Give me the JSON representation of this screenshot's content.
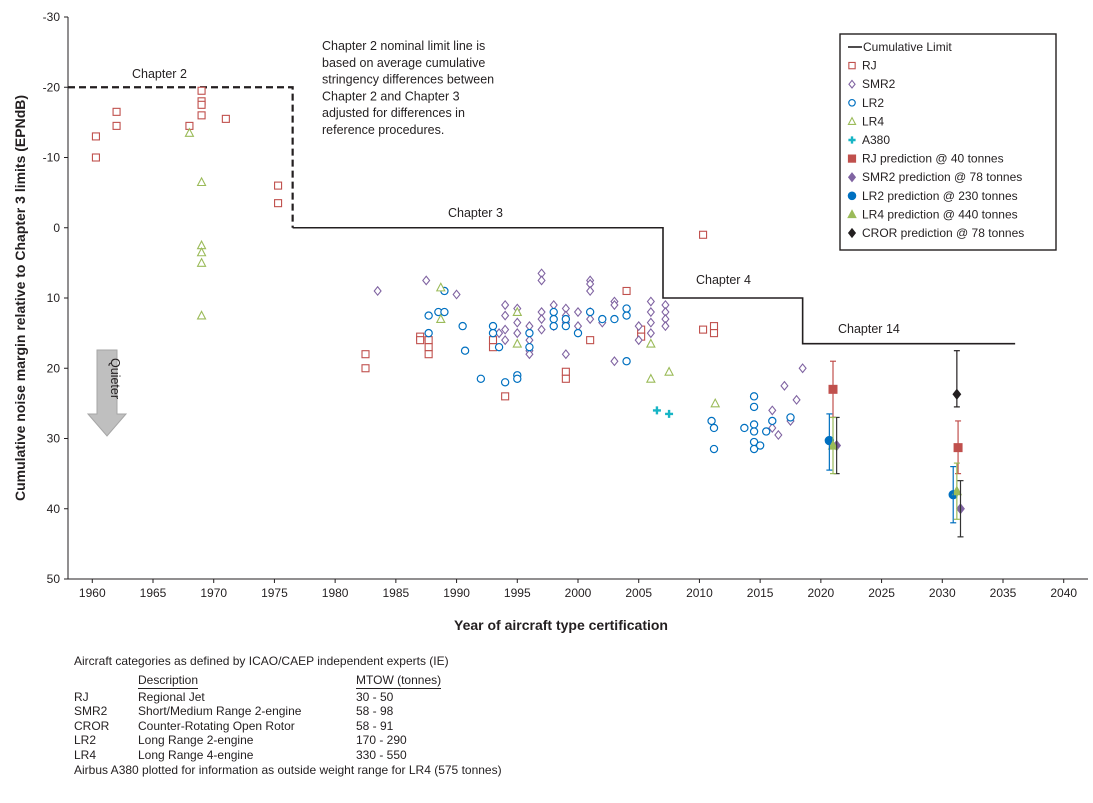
{
  "chart_data": {
    "type": "scatter",
    "xlabel": "Year of aircraft type certification",
    "ylabel": "Cumulative noise margin relative to Chapter 3 limits (EPNdB)",
    "xlim": [
      1958,
      2042
    ],
    "ylim": [
      -30,
      50
    ],
    "y_inverted": true,
    "x_ticks": [
      1960,
      1965,
      1970,
      1975,
      1980,
      1985,
      1990,
      1995,
      2000,
      2005,
      2010,
      2015,
      2020,
      2025,
      2030,
      2035,
      2040
    ],
    "y_ticks": [
      -30,
      -20,
      -10,
      0,
      10,
      20,
      30,
      40,
      50
    ],
    "grid": false,
    "legend_position": "top-right",
    "annotations": {
      "chapter2_note": [
        "Chapter 2 nominal limit line is",
        "based on average cumulative",
        "stringency differences between",
        "Chapter 2 and Chapter 3",
        "adjusted for differences in",
        "reference procedures."
      ],
      "quieter": "Quieter",
      "chapter2": "Chapter 2",
      "chapter3": "Chapter 3",
      "chapter4": "Chapter 4",
      "chapter14": "Chapter 14"
    },
    "limit_lines": [
      {
        "name": "Chapter 2 nominal limit",
        "style": "dashed",
        "points": [
          [
            1958,
            -20
          ],
          [
            1976.5,
            -20
          ],
          [
            1976.5,
            0
          ]
        ]
      },
      {
        "name": "Cumulative Limit",
        "style": "solid",
        "points": [
          [
            1976.5,
            0
          ],
          [
            2007,
            0
          ],
          [
            2007,
            10
          ],
          [
            2018.5,
            10
          ],
          [
            2018.5,
            16.5
          ],
          [
            2036,
            16.5
          ]
        ]
      }
    ],
    "series": [
      {
        "name": "RJ",
        "marker": "open-square",
        "color": "#c0504d",
        "points": [
          [
            1960.3,
            -13
          ],
          [
            1960.3,
            -10
          ],
          [
            1962,
            -16.5
          ],
          [
            1962,
            -14.5
          ],
          [
            1968,
            -14.5
          ],
          [
            1969,
            -19.5
          ],
          [
            1969,
            -18
          ],
          [
            1969,
            -17.5
          ],
          [
            1969,
            -16
          ],
          [
            1971,
            -15.5
          ],
          [
            1975.3,
            -6
          ],
          [
            1975.3,
            -3.5
          ],
          [
            1982.5,
            18
          ],
          [
            1982.5,
            20
          ],
          [
            1987,
            15.5
          ],
          [
            1987,
            16
          ],
          [
            1987.7,
            16
          ],
          [
            1987.7,
            17
          ],
          [
            1987.7,
            18
          ],
          [
            1993,
            16
          ],
          [
            1993,
            17
          ],
          [
            1994,
            24
          ],
          [
            1999,
            20.5
          ],
          [
            1999,
            21.5
          ],
          [
            2001,
            16
          ],
          [
            2004,
            9
          ],
          [
            2005.2,
            14.5
          ],
          [
            2005.2,
            15.5
          ],
          [
            2010.3,
            1
          ],
          [
            2010.3,
            14.5
          ],
          [
            2011.2,
            14
          ],
          [
            2011.2,
            15
          ]
        ]
      },
      {
        "name": "SMR2",
        "marker": "open-diamond",
        "color": "#8064a2",
        "points": [
          [
            1983.5,
            9
          ],
          [
            1987.5,
            7.5
          ],
          [
            1990,
            9.5
          ],
          [
            1993.5,
            15
          ],
          [
            1994,
            11
          ],
          [
            1994,
            12.5
          ],
          [
            1994,
            14.5
          ],
          [
            1994,
            16
          ],
          [
            1995,
            11.5
          ],
          [
            1995,
            13.5
          ],
          [
            1995,
            15
          ],
          [
            1996,
            14
          ],
          [
            1996,
            16
          ],
          [
            1996,
            17.5
          ],
          [
            1996,
            18
          ],
          [
            1997,
            6.5
          ],
          [
            1997,
            7.5
          ],
          [
            1997,
            12
          ],
          [
            1997,
            13
          ],
          [
            1997,
            14.5
          ],
          [
            1998,
            11
          ],
          [
            1998,
            13
          ],
          [
            1998,
            14
          ],
          [
            1999,
            11.5
          ],
          [
            1999,
            12.5
          ],
          [
            1999,
            13.5
          ],
          [
            1999,
            18
          ],
          [
            2000,
            12
          ],
          [
            2000,
            14
          ],
          [
            2001,
            7.5
          ],
          [
            2001,
            8
          ],
          [
            2001,
            9
          ],
          [
            2001,
            12
          ],
          [
            2001,
            13
          ],
          [
            2002,
            13.5
          ],
          [
            2003,
            10.5
          ],
          [
            2003,
            11
          ],
          [
            2003,
            19
          ],
          [
            2005,
            14
          ],
          [
            2005,
            16
          ],
          [
            2006,
            10.5
          ],
          [
            2006,
            12
          ],
          [
            2006,
            13.5
          ],
          [
            2006,
            15
          ],
          [
            2007.2,
            11
          ],
          [
            2007.2,
            12
          ],
          [
            2007.2,
            13
          ],
          [
            2007.2,
            14
          ],
          [
            2016,
            26
          ],
          [
            2016,
            28.5
          ],
          [
            2016.5,
            29.5
          ],
          [
            2017,
            22.5
          ],
          [
            2017.5,
            27.5
          ],
          [
            2018,
            24.5
          ],
          [
            2018.5,
            20
          ]
        ]
      },
      {
        "name": "LR2",
        "marker": "open-circle",
        "color": "#0070c0",
        "points": [
          [
            1987.7,
            12.5
          ],
          [
            1987.7,
            15
          ],
          [
            1988.5,
            12
          ],
          [
            1989,
            9
          ],
          [
            1989,
            12
          ],
          [
            1990.5,
            14
          ],
          [
            1990.7,
            17.5
          ],
          [
            1992,
            21.5
          ],
          [
            1993,
            14
          ],
          [
            1993,
            15
          ],
          [
            1993.5,
            17
          ],
          [
            1994,
            22
          ],
          [
            1995,
            21
          ],
          [
            1995,
            21.5
          ],
          [
            1996,
            15
          ],
          [
            1996,
            17
          ],
          [
            1998,
            12
          ],
          [
            1998,
            13
          ],
          [
            1998,
            14
          ],
          [
            1999,
            13
          ],
          [
            1999,
            14
          ],
          [
            2000,
            15
          ],
          [
            2001,
            12
          ],
          [
            2002,
            13
          ],
          [
            2003,
            13
          ],
          [
            2004,
            11.5
          ],
          [
            2004,
            12.5
          ],
          [
            2004,
            19
          ],
          [
            2011,
            27.5
          ],
          [
            2011.2,
            28.5
          ],
          [
            2011.2,
            31.5
          ],
          [
            2013.7,
            28.5
          ],
          [
            2014.5,
            24
          ],
          [
            2014.5,
            25.5
          ],
          [
            2014.5,
            28
          ],
          [
            2014.5,
            29
          ],
          [
            2014.5,
            30.5
          ],
          [
            2014.5,
            31.5
          ],
          [
            2015,
            31
          ],
          [
            2015.5,
            29
          ],
          [
            2016,
            27.5
          ],
          [
            2017.5,
            27
          ]
        ]
      },
      {
        "name": "LR4",
        "marker": "open-triangle",
        "color": "#9bbb59",
        "points": [
          [
            1968,
            -13.5
          ],
          [
            1969,
            -6.5
          ],
          [
            1969,
            2.5
          ],
          [
            1969,
            3.5
          ],
          [
            1969,
            5
          ],
          [
            1969,
            12.5
          ],
          [
            1988.7,
            8.5
          ],
          [
            1988.7,
            13
          ],
          [
            1995,
            12
          ],
          [
            1995,
            16.5
          ],
          [
            2006,
            16.5
          ],
          [
            2006,
            21.5
          ],
          [
            2007.5,
            20.5
          ],
          [
            2011.3,
            25
          ]
        ]
      },
      {
        "name": "A380",
        "marker": "cross",
        "color": "#17b5c5",
        "points": [
          [
            2006.5,
            26
          ],
          [
            2007.5,
            26.5
          ]
        ]
      },
      {
        "name": "RJ prediction @ 40 tonnes",
        "marker": "square",
        "color": "#c0504d",
        "error_bar_color": "#c0504d",
        "points": [
          [
            2021,
            23,
            19,
            27
          ],
          [
            2031.3,
            31.3,
            27.5,
            35
          ]
        ]
      },
      {
        "name": "SMR2 prediction @ 78 tonnes",
        "marker": "diamond",
        "color": "#8064a2",
        "error_bar_color": "#333333",
        "points": [
          [
            2021.3,
            31,
            27,
            35
          ],
          [
            2031.5,
            40,
            36,
            44
          ]
        ]
      },
      {
        "name": "LR2 prediction @ 230 tonnes",
        "marker": "circle",
        "color": "#0070c0",
        "error_bar_color": "#0070c0",
        "points": [
          [
            2020.7,
            30.3,
            26.5,
            34.5
          ],
          [
            2030.9,
            38,
            34,
            42
          ]
        ]
      },
      {
        "name": "LR4 prediction @ 440 tonnes",
        "marker": "triangle",
        "color": "#9bbb59",
        "error_bar_color": "#9bbb59",
        "points": [
          [
            2021,
            31,
            27,
            35
          ],
          [
            2031.2,
            37.5,
            33.5,
            41.5
          ]
        ]
      },
      {
        "name": "CROR prediction @ 78 tonnes",
        "marker": "diamond",
        "color": "#231f20",
        "error_bar_color": "#231f20",
        "points": [
          [
            2031.2,
            23.7,
            17.5,
            25.5
          ]
        ]
      }
    ],
    "legend": [
      "Cumulative Limit",
      "RJ",
      "SMR2",
      "LR2",
      "LR4",
      "A380",
      "RJ prediction @ 40 tonnes",
      "SMR2 prediction @ 78 tonnes",
      "LR2 prediction @ 230 tonnes",
      "LR4 prediction @ 440 tonnes",
      "CROR prediction @ 78 tonnes"
    ]
  },
  "footnotes": {
    "intro": "Aircraft categories as defined by ICAO/CAEP independent experts (IE)",
    "headers": {
      "description": "Description",
      "mtow": "MTOW (tonnes)"
    },
    "rows": [
      {
        "abbr": "RJ",
        "description": "Regional Jet",
        "mtow": "30 - 50"
      },
      {
        "abbr": "SMR2",
        "description": "Short/Medium Range 2-engine",
        "mtow": "58 - 98"
      },
      {
        "abbr": "CROR",
        "description": "Counter-Rotating Open Rotor",
        "mtow": "58 - 91"
      },
      {
        "abbr": "LR2",
        "description": "Long Range 2-engine",
        "mtow": "170 - 290"
      },
      {
        "abbr": "LR4",
        "description": "Long Range 4-engine",
        "mtow": "330 - 550"
      }
    ],
    "a380_note": "Airbus A380 plotted for information as outside weight range for LR4 (575 tonnes)"
  }
}
